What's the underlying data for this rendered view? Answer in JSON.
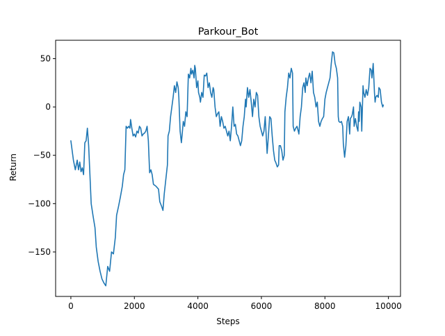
{
  "chart_data": {
    "type": "line",
    "title": "Parkour_Bot",
    "xlabel": "Steps",
    "ylabel": "Return",
    "xlim": [
      -480,
      10380
    ],
    "ylim": [
      -196,
      69
    ],
    "xticks": [
      0,
      2000,
      4000,
      6000,
      8000,
      10000
    ],
    "yticks": [
      -150,
      -100,
      -50,
      0,
      50
    ],
    "xtick_labels": [
      "0",
      "2000",
      "4000",
      "6000",
      "8000",
      "10000"
    ],
    "ytick_labels": [
      "−150",
      "−100",
      "−50",
      "0",
      "50"
    ],
    "grid": false,
    "series": [
      {
        "color": "#1f77b4",
        "points": [
          [
            0,
            -35
          ],
          [
            80,
            -55
          ],
          [
            140,
            -65
          ],
          [
            200,
            -55
          ],
          [
            240,
            -65
          ],
          [
            280,
            -57
          ],
          [
            320,
            -67
          ],
          [
            360,
            -63
          ],
          [
            400,
            -70
          ],
          [
            440,
            -37
          ],
          [
            480,
            -35
          ],
          [
            520,
            -22
          ],
          [
            560,
            -40
          ],
          [
            600,
            -70
          ],
          [
            640,
            -100
          ],
          [
            700,
            -113
          ],
          [
            760,
            -125
          ],
          [
            800,
            -145
          ],
          [
            860,
            -160
          ],
          [
            920,
            -170
          ],
          [
            980,
            -178
          ],
          [
            1040,
            -182
          ],
          [
            1100,
            -185
          ],
          [
            1160,
            -165
          ],
          [
            1220,
            -170
          ],
          [
            1280,
            -150
          ],
          [
            1340,
            -152
          ],
          [
            1400,
            -135
          ],
          [
            1440,
            -112
          ],
          [
            1500,
            -103
          ],
          [
            1560,
            -93
          ],
          [
            1620,
            -82
          ],
          [
            1660,
            -70
          ],
          [
            1700,
            -65
          ],
          [
            1740,
            -20
          ],
          [
            1780,
            -22
          ],
          [
            1820,
            -20
          ],
          [
            1860,
            -22
          ],
          [
            1880,
            -13
          ],
          [
            1920,
            -22
          ],
          [
            1960,
            -30
          ],
          [
            2000,
            -28
          ],
          [
            2040,
            -31
          ],
          [
            2080,
            -25
          ],
          [
            2120,
            -27
          ],
          [
            2160,
            -20
          ],
          [
            2200,
            -22
          ],
          [
            2240,
            -30
          ],
          [
            2280,
            -28
          ],
          [
            2320,
            -27
          ],
          [
            2360,
            -25
          ],
          [
            2400,
            -20
          ],
          [
            2440,
            -35
          ],
          [
            2480,
            -68
          ],
          [
            2520,
            -65
          ],
          [
            2560,
            -70
          ],
          [
            2600,
            -80
          ],
          [
            2680,
            -82
          ],
          [
            2760,
            -85
          ],
          [
            2800,
            -98
          ],
          [
            2860,
            -103
          ],
          [
            2900,
            -107
          ],
          [
            2940,
            -90
          ],
          [
            2980,
            -78
          ],
          [
            3040,
            -60
          ],
          [
            3060,
            -30
          ],
          [
            3100,
            -25
          ],
          [
            3140,
            -10
          ],
          [
            3180,
            0
          ],
          [
            3220,
            10
          ],
          [
            3260,
            22
          ],
          [
            3300,
            15
          ],
          [
            3340,
            26
          ],
          [
            3380,
            20
          ],
          [
            3400,
            10
          ],
          [
            3440,
            -25
          ],
          [
            3480,
            -37
          ],
          [
            3500,
            -30
          ],
          [
            3540,
            -15
          ],
          [
            3580,
            -20
          ],
          [
            3620,
            -5
          ],
          [
            3660,
            -10
          ],
          [
            3700,
            34
          ],
          [
            3740,
            30
          ],
          [
            3780,
            40
          ],
          [
            3800,
            34
          ],
          [
            3840,
            38
          ],
          [
            3880,
            30
          ],
          [
            3900,
            43
          ],
          [
            3920,
            40
          ],
          [
            3960,
            20
          ],
          [
            4000,
            27
          ],
          [
            4020,
            15
          ],
          [
            4060,
            10
          ],
          [
            4080,
            5
          ],
          [
            4120,
            15
          ],
          [
            4160,
            10
          ],
          [
            4200,
            33
          ],
          [
            4240,
            32
          ],
          [
            4280,
            35
          ],
          [
            4320,
            20
          ],
          [
            4360,
            25
          ],
          [
            4400,
            15
          ],
          [
            4440,
            10
          ],
          [
            4480,
            20
          ],
          [
            4500,
            18
          ],
          [
            4540,
            0
          ],
          [
            4580,
            -10
          ],
          [
            4620,
            -7
          ],
          [
            4660,
            -5
          ],
          [
            4700,
            -20
          ],
          [
            4740,
            -10
          ],
          [
            4780,
            -15
          ],
          [
            4820,
            -22
          ],
          [
            4860,
            -20
          ],
          [
            4900,
            -25
          ],
          [
            4940,
            -30
          ],
          [
            4980,
            -25
          ],
          [
            5020,
            -35
          ],
          [
            5060,
            -20
          ],
          [
            5100,
            0
          ],
          [
            5140,
            -20
          ],
          [
            5180,
            -18
          ],
          [
            5220,
            -28
          ],
          [
            5260,
            -30
          ],
          [
            5300,
            -35
          ],
          [
            5340,
            -40
          ],
          [
            5380,
            -35
          ],
          [
            5420,
            -20
          ],
          [
            5460,
            -10
          ],
          [
            5500,
            8
          ],
          [
            5520,
            0
          ],
          [
            5560,
            20
          ],
          [
            5600,
            10
          ],
          [
            5640,
            18
          ],
          [
            5680,
            5
          ],
          [
            5720,
            -10
          ],
          [
            5760,
            8
          ],
          [
            5800,
            0
          ],
          [
            5840,
            15
          ],
          [
            5880,
            12
          ],
          [
            5920,
            -10
          ],
          [
            5960,
            -20
          ],
          [
            6000,
            -25
          ],
          [
            6040,
            -30
          ],
          [
            6080,
            -25
          ],
          [
            6120,
            -10
          ],
          [
            6160,
            -35
          ],
          [
            6180,
            -48
          ],
          [
            6220,
            -30
          ],
          [
            6260,
            -10
          ],
          [
            6300,
            -12
          ],
          [
            6340,
            -30
          ],
          [
            6380,
            -45
          ],
          [
            6420,
            -55
          ],
          [
            6460,
            -58
          ],
          [
            6500,
            -62
          ],
          [
            6540,
            -60
          ],
          [
            6560,
            -40
          ],
          [
            6600,
            -40
          ],
          [
            6640,
            -45
          ],
          [
            6680,
            -55
          ],
          [
            6720,
            -50
          ],
          [
            6740,
            -5
          ],
          [
            6780,
            10
          ],
          [
            6820,
            20
          ],
          [
            6860,
            35
          ],
          [
            6900,
            30
          ],
          [
            6940,
            40
          ],
          [
            6980,
            35
          ],
          [
            7000,
            -20
          ],
          [
            7040,
            -25
          ],
          [
            7080,
            -22
          ],
          [
            7120,
            -20
          ],
          [
            7160,
            -25
          ],
          [
            7180,
            -28
          ],
          [
            7220,
            -10
          ],
          [
            7260,
            0
          ],
          [
            7300,
            20
          ],
          [
            7340,
            25
          ],
          [
            7380,
            15
          ],
          [
            7400,
            30
          ],
          [
            7440,
            22
          ],
          [
            7480,
            30
          ],
          [
            7520,
            35
          ],
          [
            7560,
            25
          ],
          [
            7600,
            37
          ],
          [
            7640,
            15
          ],
          [
            7680,
            10
          ],
          [
            7720,
            0
          ],
          [
            7760,
            5
          ],
          [
            7800,
            -15
          ],
          [
            7840,
            -20
          ],
          [
            7880,
            -15
          ],
          [
            7920,
            -12
          ],
          [
            7960,
            -10
          ],
          [
            8000,
            8
          ],
          [
            8040,
            15
          ],
          [
            8080,
            20
          ],
          [
            8120,
            25
          ],
          [
            8160,
            30
          ],
          [
            8200,
            45
          ],
          [
            8240,
            57
          ],
          [
            8280,
            56
          ],
          [
            8320,
            45
          ],
          [
            8360,
            40
          ],
          [
            8400,
            30
          ],
          [
            8420,
            -10
          ],
          [
            8440,
            -15
          ],
          [
            8480,
            -16
          ],
          [
            8520,
            -15
          ],
          [
            8560,
            -20
          ],
          [
            8580,
            -38
          ],
          [
            8620,
            -52
          ],
          [
            8660,
            -40
          ],
          [
            8700,
            -15
          ],
          [
            8740,
            -10
          ],
          [
            8780,
            -28
          ],
          [
            8800,
            -12
          ],
          [
            8840,
            -10
          ],
          [
            8860,
            -8
          ],
          [
            8900,
            0
          ],
          [
            8920,
            -20
          ],
          [
            8960,
            -12
          ],
          [
            9000,
            -20
          ],
          [
            9040,
            -25
          ],
          [
            9060,
            -5
          ],
          [
            9080,
            -15
          ],
          [
            9100,
            5
          ],
          [
            9140,
            0
          ],
          [
            9160,
            -25
          ],
          [
            9200,
            22
          ],
          [
            9220,
            15
          ],
          [
            9260,
            10
          ],
          [
            9300,
            18
          ],
          [
            9340,
            12
          ],
          [
            9380,
            20
          ],
          [
            9420,
            40
          ],
          [
            9460,
            38
          ],
          [
            9480,
            30
          ],
          [
            9520,
            45
          ],
          [
            9560,
            15
          ],
          [
            9580,
            5
          ],
          [
            9600,
            10
          ],
          [
            9640,
            12
          ],
          [
            9680,
            10
          ],
          [
            9700,
            20
          ],
          [
            9740,
            18
          ],
          [
            9780,
            5
          ],
          [
            9820,
            0
          ],
          [
            9840,
            2
          ]
        ]
      }
    ]
  }
}
